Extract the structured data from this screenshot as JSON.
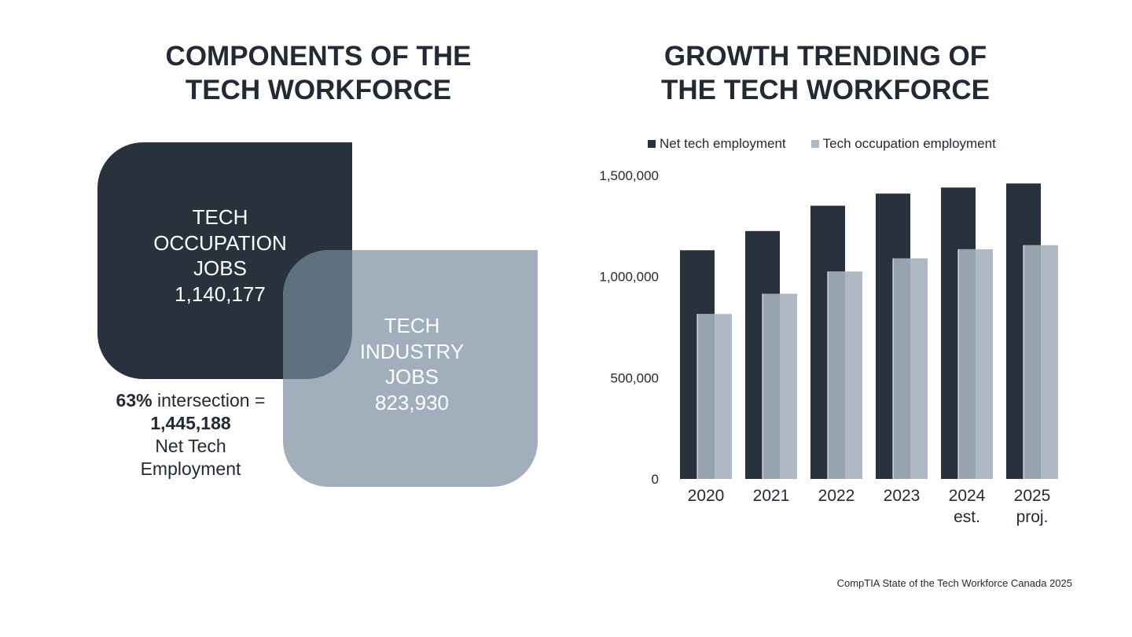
{
  "left_panel": {
    "title_lines": [
      "COMPONENTS OF THE",
      "TECH WORKFORCE"
    ],
    "occupation_box": {
      "lines": [
        "TECH",
        "OCCUPATION",
        "JOBS",
        "1,140,177"
      ]
    },
    "industry_box": {
      "lines": [
        "TECH",
        "INDUSTRY",
        "JOBS",
        "823,930"
      ]
    },
    "intersection": {
      "percent": "63%",
      "text": " intersection =",
      "value": "1,445,188",
      "label_line1": "Net Tech",
      "label_line2": "Employment"
    }
  },
  "right_panel": {
    "title_lines": [
      "GROWTH TRENDING OF",
      "THE TECH WORKFORCE"
    ]
  },
  "colors": {
    "dark": "#28323c",
    "light": "#a1afbc",
    "overlap": "#5f717f",
    "bar_light": "#aeb9c4",
    "bar_overlap": "#97a4af"
  },
  "chart_data": {
    "type": "bar",
    "categories": [
      [
        "2020"
      ],
      [
        "2021"
      ],
      [
        "2022"
      ],
      [
        "2023"
      ],
      [
        "2024",
        "est."
      ],
      [
        "2025",
        "proj."
      ]
    ],
    "series": [
      {
        "name": "Net tech employment",
        "values": [
          1130000,
          1225000,
          1350000,
          1410000,
          1440000,
          1460000
        ]
      },
      {
        "name": "Tech occupation employment",
        "values": [
          815000,
          915000,
          1025000,
          1090000,
          1135000,
          1155000
        ]
      }
    ],
    "yticks": [
      0,
      500000,
      1000000,
      1500000
    ],
    "ytick_labels": [
      "0",
      "500,000",
      "1,000,000",
      "1,500,000"
    ],
    "ylim": [
      0,
      1500000
    ],
    "legend_position": "top"
  },
  "source": "CompTIA State of the Tech Workforce Canada 2025"
}
